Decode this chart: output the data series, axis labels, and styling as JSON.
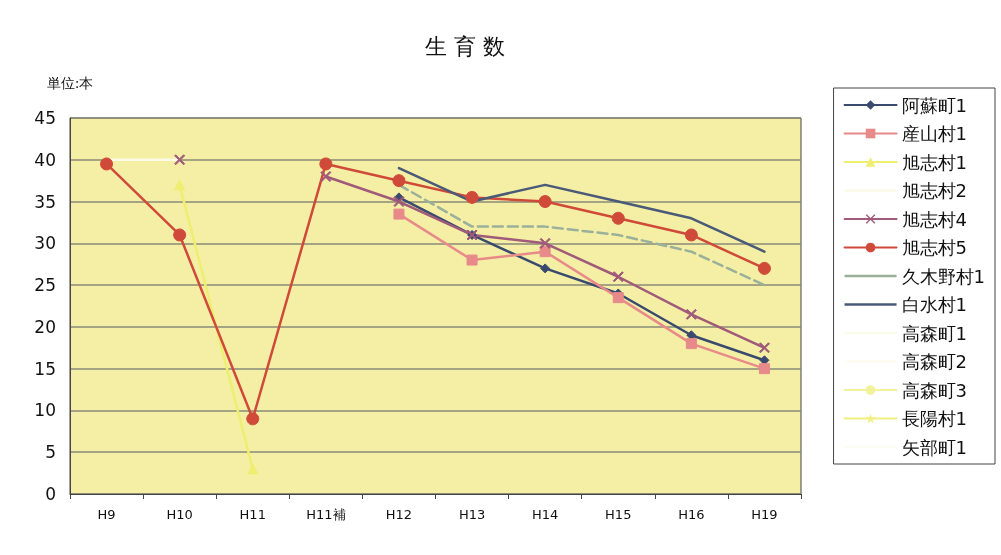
{
  "chart_data": {
    "type": "line",
    "title": "生 育 数",
    "ylabel": "単位:本",
    "categories": [
      "H9",
      "H10",
      "H11",
      "H11補",
      "H12",
      "H13",
      "H14",
      "H15",
      "H16",
      "H19"
    ],
    "ylim": [
      0,
      45
    ],
    "yticks": [
      0,
      5,
      10,
      15,
      20,
      25,
      30,
      35,
      40,
      45
    ],
    "grid": "y",
    "legend": "right",
    "line_style": "solid",
    "series": [
      {
        "name": "阿蘇町1",
        "color": "#3a4a6e",
        "marker": "diamond",
        "values": [
          null,
          null,
          null,
          null,
          35.5,
          31,
          27,
          24,
          19,
          16
        ]
      },
      {
        "name": "産山村1",
        "color": "#e88a8a",
        "marker": "square",
        "values": [
          null,
          null,
          null,
          null,
          33.5,
          28,
          29,
          23.5,
          18,
          15
        ]
      },
      {
        "name": "旭志村1",
        "color": "#eeee70",
        "marker": "triangle",
        "values": [
          null,
          37,
          3,
          null,
          null,
          null,
          null,
          null,
          null,
          null
        ]
      },
      {
        "name": "旭志村2",
        "color": "#fafae6",
        "marker": "none",
        "values": [
          40,
          40,
          null,
          null,
          null,
          null,
          null,
          null,
          null,
          null
        ]
      },
      {
        "name": "旭志村4",
        "color": "#a05a7a",
        "marker": "cross",
        "values": [
          null,
          40,
          null,
          38,
          35,
          31,
          30,
          26,
          21.5,
          17.5
        ]
      },
      {
        "name": "旭志村5",
        "color": "#d04a3a",
        "marker": "circle",
        "values": [
          39.5,
          31,
          9,
          39.5,
          37.5,
          35.5,
          35,
          33,
          31,
          27
        ]
      },
      {
        "name": "久木野村1",
        "color": "#9ab09a",
        "marker": "none",
        "line_style": "dashed",
        "values": [
          null,
          null,
          null,
          null,
          37,
          32,
          32,
          31,
          29,
          25
        ]
      },
      {
        "name": "白水村1",
        "color": "#4a5a78",
        "marker": "none",
        "values": [
          null,
          null,
          null,
          null,
          39,
          35,
          37,
          35,
          33,
          29
        ]
      },
      {
        "name": "高森町1",
        "color": "#fbfbea",
        "marker": "none",
        "values": [
          null,
          null,
          null,
          null,
          null,
          null,
          null,
          null,
          null,
          null
        ]
      },
      {
        "name": "高森町2",
        "color": "#fdfdf2",
        "marker": "none",
        "values": [
          null,
          null,
          null,
          null,
          null,
          null,
          null,
          null,
          null,
          null
        ]
      },
      {
        "name": "高森町3",
        "color": "#f2f29a",
        "marker": "circle",
        "values": [
          null,
          null,
          null,
          null,
          null,
          null,
          null,
          null,
          null,
          null
        ]
      },
      {
        "name": "長陽村1",
        "color": "#f0f080",
        "marker": "star",
        "values": [
          null,
          null,
          null,
          null,
          null,
          null,
          null,
          null,
          null,
          null
        ]
      },
      {
        "name": "矢部町1",
        "color": "#fcfcf2",
        "marker": "none",
        "values": [
          null,
          null,
          null,
          null,
          null,
          null,
          null,
          null,
          null,
          null
        ]
      }
    ]
  }
}
